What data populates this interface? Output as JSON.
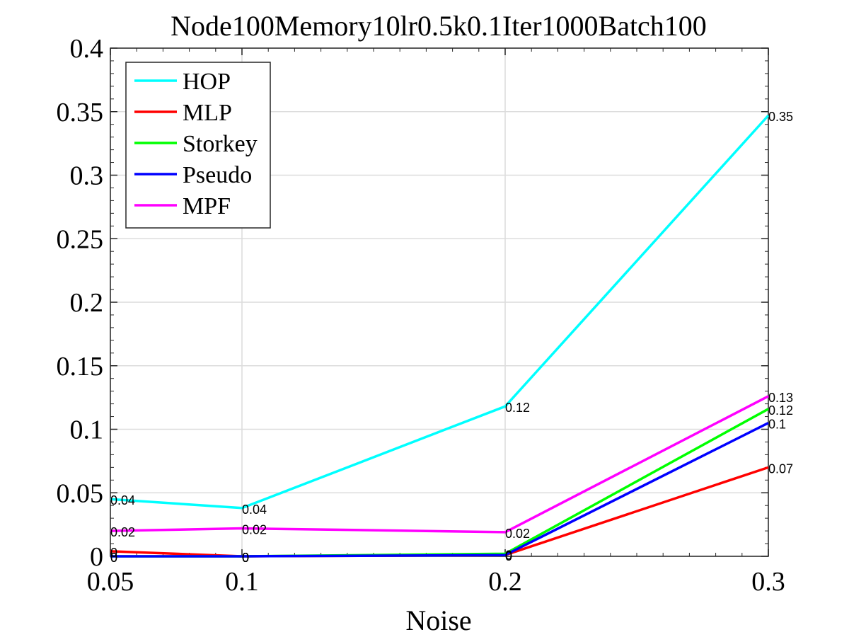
{
  "chart_data": {
    "type": "line",
    "title": "Node100Memory10lr0.5k0.1Iter1000Batch100",
    "xlabel": "Noise",
    "ylabel": "",
    "x": [
      0.05,
      0.1,
      0.2,
      0.3
    ],
    "xlim": [
      0.05,
      0.3
    ],
    "ylim": [
      0,
      0.4
    ],
    "xticks": [
      "0.05",
      "0.1",
      "0.2",
      "0.3"
    ],
    "yticks": [
      "0",
      "0.05",
      "0.1",
      "0.15",
      "0.2",
      "0.25",
      "0.3",
      "0.35",
      "0.4"
    ],
    "grid": true,
    "legend_position": "top-left",
    "series": [
      {
        "name": "HOP",
        "color": "#00FFFF",
        "values": [
          0.045,
          0.038,
          0.118,
          0.347
        ],
        "labels": [
          "0.04",
          "0.04",
          "0.12",
          "0.35"
        ]
      },
      {
        "name": "MLP",
        "color": "#FF0000",
        "values": [
          0.004,
          0.0,
          0.001,
          0.07
        ],
        "labels": [
          "0",
          "0",
          "0",
          "0.07"
        ]
      },
      {
        "name": "Storkey",
        "color": "#00FF00",
        "values": [
          0.0,
          0.0,
          0.002,
          0.116
        ],
        "labels": [
          "0",
          "0",
          "0",
          "0.12"
        ]
      },
      {
        "name": "Pseudo",
        "color": "#0000FF",
        "values": [
          0.0,
          0.0,
          0.001,
          0.105
        ],
        "labels": [
          "0",
          "0",
          "0",
          "0.1"
        ]
      },
      {
        "name": "MPF",
        "color": "#FF00FF",
        "values": [
          0.02,
          0.022,
          0.019,
          0.126
        ],
        "labels": [
          "0.02",
          "0.02",
          "0.02",
          "0.13"
        ]
      }
    ]
  }
}
